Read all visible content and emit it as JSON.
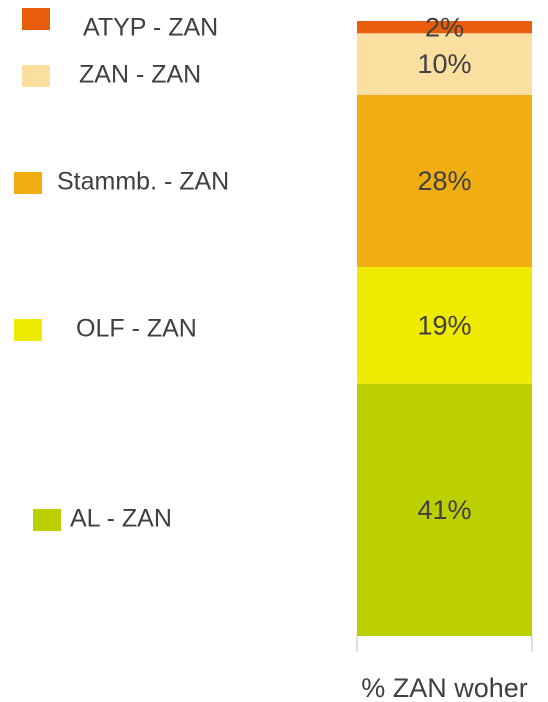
{
  "chart_data": {
    "type": "stacked-bar",
    "categories": [
      "% ZAN woher"
    ],
    "series": [
      {
        "name": "AL - ZAN",
        "color": "#bcd000",
        "values": [
          41
        ],
        "value_labels": [
          "41%"
        ]
      },
      {
        "name": "OLF - ZAN",
        "color": "#eeea00",
        "values": [
          19
        ],
        "value_labels": [
          "19%"
        ]
      },
      {
        "name": "Stammb. - ZAN",
        "color": "#f0ae12",
        "values": [
          28
        ],
        "value_labels": [
          "28%"
        ]
      },
      {
        "name": "ZAN - ZAN",
        "color": "#fadfa0",
        "values": [
          10
        ],
        "value_labels": [
          "10%"
        ]
      },
      {
        "name": "ATYP - ZAN",
        "color": "#e85d0c",
        "values": [
          2
        ],
        "value_labels": [
          "2%"
        ]
      }
    ],
    "ylim": [
      0,
      100
    ]
  }
}
